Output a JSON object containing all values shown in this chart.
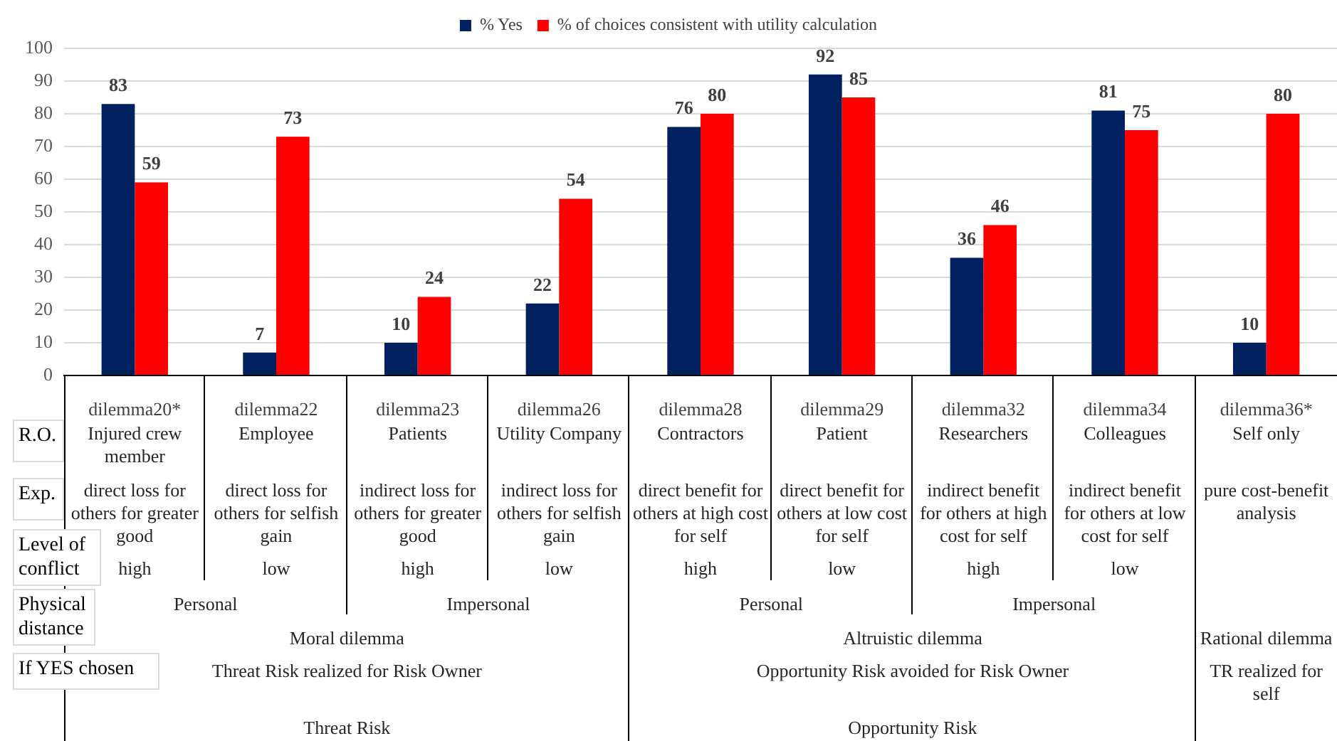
{
  "chart_data": {
    "type": "bar",
    "categories": [
      "dilemma20*",
      "dilemma22",
      "dilemma23",
      "dilemma26",
      "dilemma28",
      "dilemma29",
      "dilemma32",
      "dilemma34",
      "dilemma36*"
    ],
    "series": [
      {
        "name": "% Yes",
        "color": "#002060",
        "values": [
          83,
          7,
          10,
          22,
          76,
          92,
          36,
          81,
          10
        ]
      },
      {
        "name": "% of choices consistent with utility calculation",
        "color": "#ff0000",
        "values": [
          59,
          73,
          24,
          54,
          80,
          85,
          46,
          75,
          80
        ]
      }
    ],
    "ylim": [
      0,
      100
    ],
    "yticks": [
      0,
      10,
      20,
      30,
      40,
      50,
      60,
      70,
      80,
      90,
      100
    ],
    "grid": "y",
    "legend": "top",
    "data_labels": true,
    "annotations": [
      "R.O.",
      "Exp.",
      "Level of conflict",
      "Physical distance",
      "If YES chosen",
      "Injured crew member",
      "Employee",
      "Patients",
      "Utility Company",
      "Contractors",
      "Patient",
      "Researchers",
      "Colleagues",
      "Self only",
      "direct loss for others for greater good",
      "direct loss for others for selfish gain",
      "indirect loss for others for greater good",
      "indirect loss for others for selfish gain",
      "direct benefit for others at high cost for self",
      "direct benefit for others at low cost for self",
      "indirect benefit for others at high cost for self",
      "indirect benefit for others at low cost for self",
      "pure cost-benefit analysis",
      "high",
      "low",
      "high",
      "low",
      "high",
      "low",
      "high",
      "low",
      "Personal",
      "Impersonal",
      "Personal",
      "Impersonal",
      "Moral dilemma",
      "Altruistic dilemma",
      "Rational dilemma",
      "Threat Risk realized for Risk Owner",
      "Opportunity Risk avoided for Risk Owner",
      "TR realized for self",
      "Threat Risk",
      "Opportunity Risk"
    ]
  }
}
